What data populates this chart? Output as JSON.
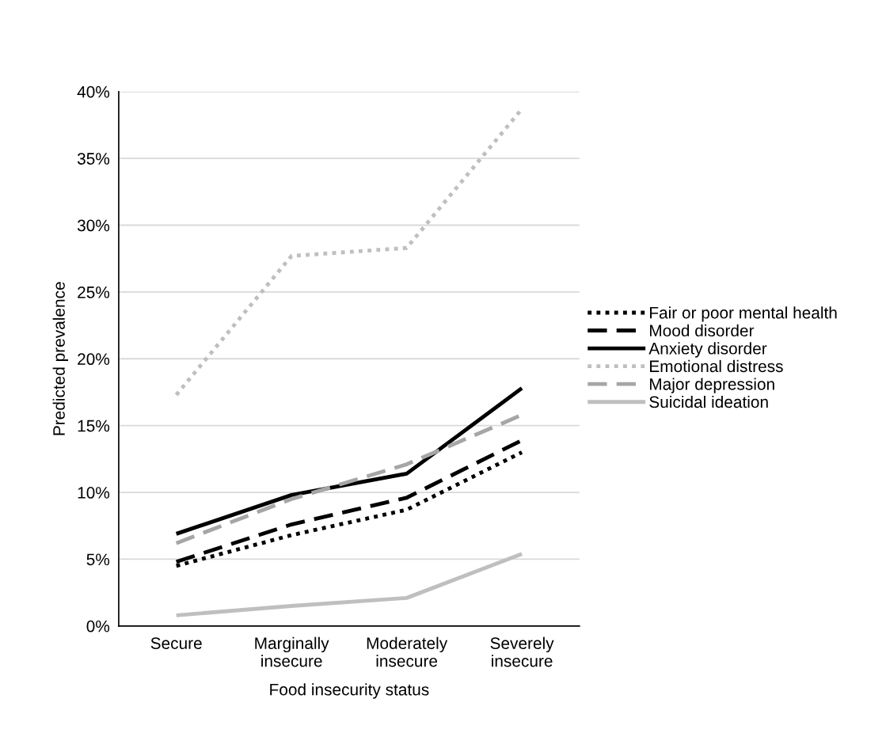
{
  "chart_data": {
    "type": "line",
    "xlabel": "Food insecurity status",
    "ylabel": "Predicted prevalence",
    "categories": [
      "Secure",
      "Marginally\ninsecure",
      "Moderately\ninsecure",
      "Severely\ninsecure"
    ],
    "ylim": [
      0,
      40
    ],
    "yticks": [
      {
        "value": 0,
        "label": "0%"
      },
      {
        "value": 5,
        "label": "5%"
      },
      {
        "value": 10,
        "label": "10%"
      },
      {
        "value": 15,
        "label": "15%"
      },
      {
        "value": 20,
        "label": "20%"
      },
      {
        "value": 25,
        "label": "25%"
      },
      {
        "value": 30,
        "label": "30%"
      },
      {
        "value": 35,
        "label": "35%"
      },
      {
        "value": 40,
        "label": "40%"
      }
    ],
    "grid": "y",
    "legend": "right",
    "marker": "none",
    "series": [
      {
        "name": "Fair or poor mental health",
        "color": "#000000",
        "line_style": "dotted",
        "values": [
          4.5,
          6.8,
          8.7,
          13.0
        ]
      },
      {
        "name": "Mood disorder",
        "color": "#000000",
        "line_style": "dashed",
        "values": [
          4.8,
          7.6,
          9.6,
          13.9
        ]
      },
      {
        "name": "Anxiety disorder",
        "color": "#000000",
        "line_style": "solid",
        "values": [
          6.9,
          9.8,
          11.4,
          17.8
        ]
      },
      {
        "name": "Emotional distress",
        "color": "#bfbfbf",
        "line_style": "dotted",
        "values": [
          17.3,
          27.7,
          28.3,
          38.7
        ]
      },
      {
        "name": "Major depression",
        "color": "#a6a6a6",
        "line_style": "dashed",
        "values": [
          6.2,
          9.5,
          12.1,
          15.8
        ]
      },
      {
        "name": "Suicidal ideation",
        "color": "#bfbfbf",
        "line_style": "solid",
        "values": [
          0.8,
          1.5,
          2.1,
          5.4
        ]
      }
    ]
  }
}
